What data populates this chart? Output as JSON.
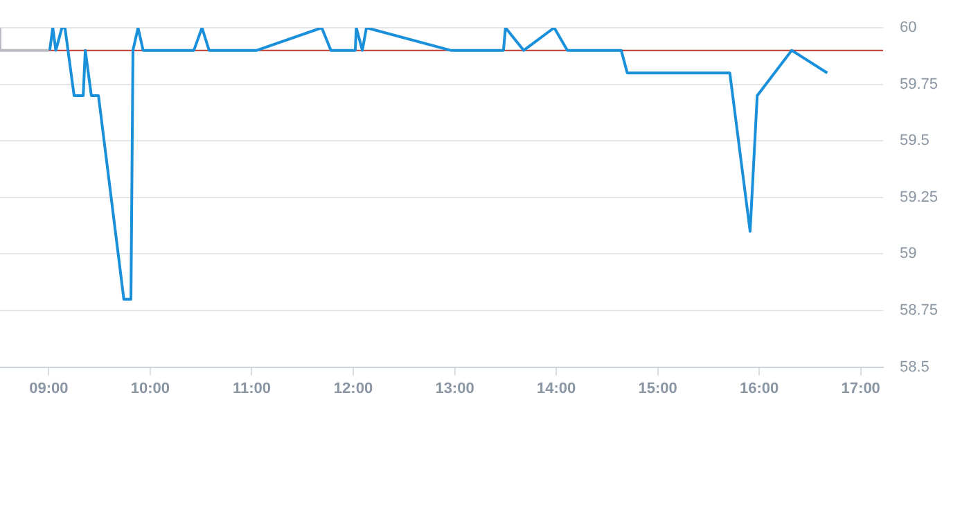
{
  "chart_data": {
    "type": "line",
    "xlim": [
      8.52,
      17.22
    ],
    "ylim": [
      58.5,
      60
    ],
    "xticks": [
      {
        "value": 9,
        "label": "09:00"
      },
      {
        "value": 10,
        "label": "10:00"
      },
      {
        "value": 11,
        "label": "11:00"
      },
      {
        "value": 12,
        "label": "12:00"
      },
      {
        "value": 13,
        "label": "13:00"
      },
      {
        "value": 14,
        "label": "14:00"
      },
      {
        "value": 15,
        "label": "15:00"
      },
      {
        "value": 16,
        "label": "16:00"
      },
      {
        "value": 17,
        "label": "17:00"
      }
    ],
    "yticks": [
      58.5,
      58.75,
      59,
      59.25,
      59.5,
      59.75,
      60
    ],
    "grid": "y",
    "legend": false,
    "marker": "none",
    "line_style": "solid",
    "ref_lines": [
      {
        "axis": "y",
        "value": 59.9,
        "color": "#c0392b"
      }
    ],
    "series": [
      {
        "color": "#b8bcc2",
        "x": [
          8.52,
          8.52,
          9.0
        ],
        "values": [
          60,
          59.9,
          59.9
        ]
      },
      {
        "color": "#1a90db",
        "x": [
          9.01,
          9.04,
          9.07,
          9.13,
          9.16,
          9.25,
          9.34,
          9.36,
          9.42,
          9.49,
          9.74,
          9.81,
          9.83,
          9.88,
          9.93,
          10.43,
          10.51,
          10.58,
          11.05,
          11.69,
          11.78,
          12.02,
          12.03,
          12.09,
          12.13,
          12.96,
          13.48,
          13.5,
          13.68,
          13.98,
          14.11,
          14.64,
          14.7,
          15.71,
          15.91,
          15.98,
          16.32,
          16.67
        ],
        "values": [
          59.9,
          60,
          59.9,
          60,
          60,
          59.7,
          59.7,
          59.9,
          59.7,
          59.7,
          58.8,
          58.8,
          59.9,
          60,
          59.9,
          59.9,
          60,
          59.9,
          59.9,
          60,
          59.9,
          59.9,
          60,
          59.9,
          60,
          59.9,
          59.9,
          60,
          59.9,
          60,
          59.9,
          59.9,
          59.8,
          59.8,
          59.1,
          59.7,
          59.9,
          59.8
        ]
      }
    ]
  }
}
